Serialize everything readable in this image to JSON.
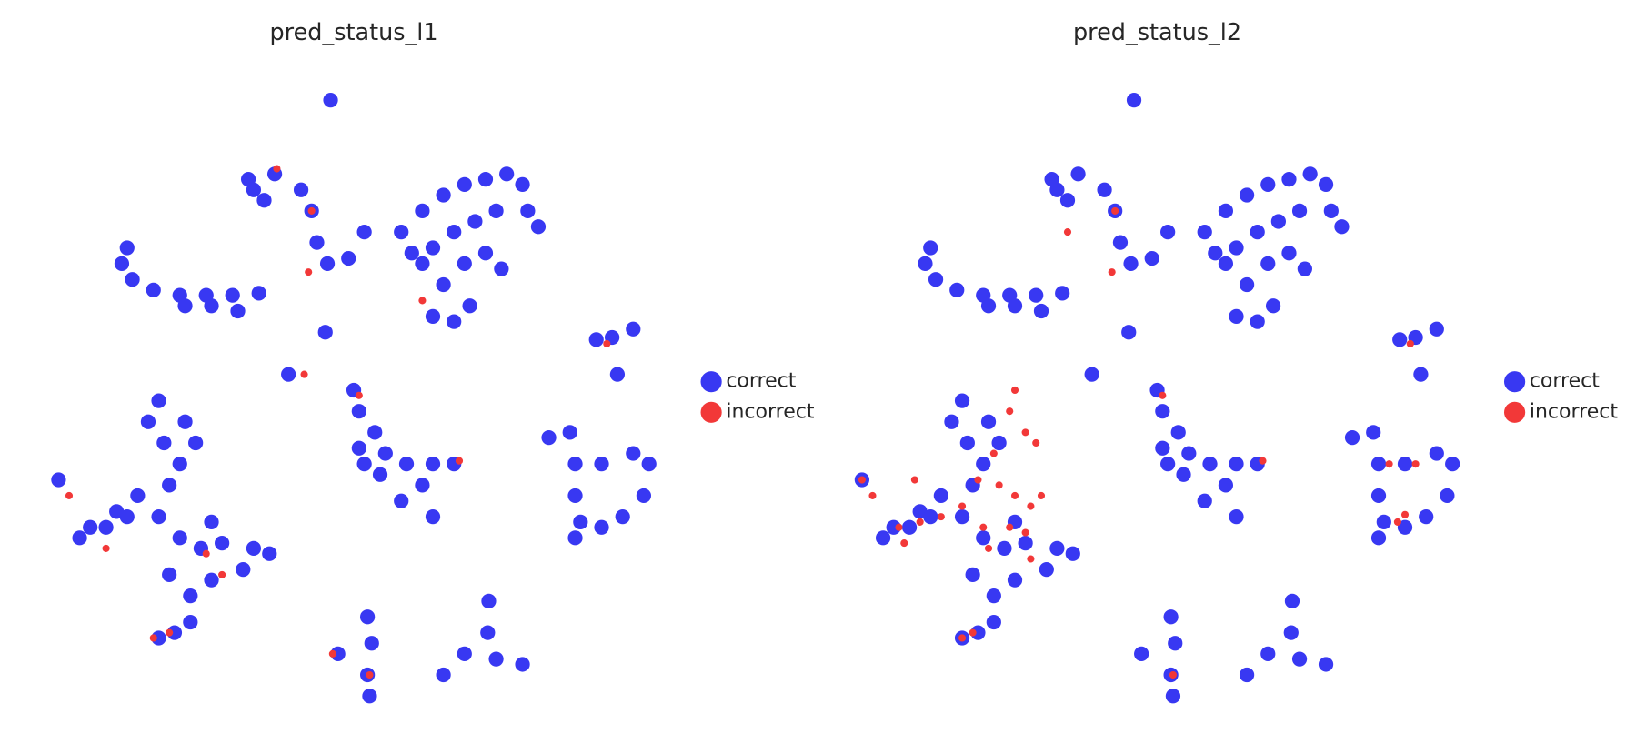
{
  "chart_data": [
    {
      "type": "scatter",
      "title": "pred_status_l1",
      "xlim": [
        0,
        600
      ],
      "ylim": [
        0,
        600
      ],
      "series": [
        {
          "name": "correct",
          "color": "#3838f2",
          "x": [
            273,
            195,
            220,
            245,
            255,
            260,
            270,
            290,
            305,
            200,
            210,
            340,
            360,
            380,
            400,
            420,
            440,
            455,
            460,
            470,
            430,
            410,
            390,
            370,
            350,
            400,
            420,
            435,
            380,
            370,
            390,
            405,
            360,
            80,
            75,
            85,
            105,
            130,
            155,
            180,
            205,
            160,
            135,
            185,
            540,
            525,
            560,
            545,
            233,
            268,
            110,
            100,
            115,
            130,
            145,
            135,
            120,
            90,
            70,
            45,
            35,
            60,
            80,
            110,
            130,
            150,
            170,
            200,
            215,
            190,
            160,
            140,
            120,
            160,
            15,
            110,
            125,
            140,
            295,
            300,
            315,
            300,
            325,
            345,
            370,
            390,
            360,
            340,
            370,
            320,
            305,
            480,
            500,
            505,
            505,
            510,
            505,
            530,
            560,
            575,
            570,
            550,
            530,
            308,
            312,
            308,
            310,
            280,
            423,
            422,
            400,
            430,
            455,
            380
          ],
          "values": [
            585,
            510,
            515,
            500,
            480,
            450,
            430,
            435,
            460,
            500,
            490,
            460,
            480,
            495,
            505,
            510,
            515,
            505,
            480,
            465,
            480,
            470,
            460,
            445,
            440,
            430,
            440,
            425,
            410,
            380,
            375,
            390,
            430,
            445,
            430,
            415,
            405,
            400,
            400,
            400,
            402,
            390,
            390,
            385,
            360,
            358,
            368,
            325,
            325,
            365,
            300,
            280,
            260,
            240,
            260,
            280,
            220,
            210,
            195,
            180,
            170,
            180,
            190,
            190,
            170,
            160,
            165,
            160,
            155,
            140,
            130,
            115,
            135,
            185,
            225,
            75,
            80,
            90,
            310,
            290,
            270,
            255,
            250,
            240,
            240,
            240,
            220,
            205,
            190,
            230,
            240,
            265,
            270,
            240,
            210,
            185,
            170,
            240,
            250,
            240,
            210,
            190,
            180,
            95,
            70,
            40,
            20,
            60,
            110,
            80,
            60,
            55,
            50,
            40
          ]
        },
        {
          "name": "incorrect",
          "color": "#f23838",
          "x": [
            222,
            255,
            252,
            300,
            395,
            535,
            105,
            120,
            155,
            170,
            25,
            60,
            310,
            275,
            248,
            360
          ],
          "values": [
            520,
            480,
            422,
            305,
            243,
            354,
            75,
            80,
            155,
            135,
            210,
            160,
            40,
            60,
            325,
            395
          ]
        }
      ]
    },
    {
      "type": "scatter",
      "title": "pred_status_l2",
      "xlim": [
        0,
        600
      ],
      "ylim": [
        0,
        600
      ],
      "series": [
        {
          "name": "correct",
          "color": "#3838f2",
          "x": [
            273,
            195,
            220,
            245,
            255,
            260,
            270,
            290,
            305,
            200,
            210,
            340,
            360,
            380,
            400,
            420,
            440,
            455,
            460,
            470,
            430,
            410,
            390,
            370,
            350,
            400,
            420,
            435,
            380,
            370,
            390,
            405,
            360,
            80,
            75,
            85,
            105,
            130,
            155,
            180,
            205,
            160,
            135,
            185,
            540,
            525,
            560,
            545,
            233,
            268,
            110,
            100,
            115,
            130,
            145,
            135,
            120,
            90,
            70,
            45,
            35,
            60,
            80,
            110,
            130,
            150,
            170,
            200,
            215,
            190,
            160,
            140,
            120,
            160,
            15,
            110,
            125,
            140,
            295,
            300,
            315,
            300,
            325,
            345,
            370,
            390,
            360,
            340,
            370,
            320,
            305,
            480,
            500,
            505,
            505,
            510,
            505,
            530,
            560,
            575,
            570,
            550,
            530,
            308,
            312,
            308,
            310,
            280,
            423,
            422,
            400,
            430,
            455,
            380
          ],
          "values": [
            585,
            510,
            515,
            500,
            480,
            450,
            430,
            435,
            460,
            500,
            490,
            460,
            480,
            495,
            505,
            510,
            515,
            505,
            480,
            465,
            480,
            470,
            460,
            445,
            440,
            430,
            440,
            425,
            410,
            380,
            375,
            390,
            430,
            445,
            430,
            415,
            405,
            400,
            400,
            400,
            402,
            390,
            390,
            385,
            360,
            358,
            368,
            325,
            325,
            365,
            300,
            280,
            260,
            240,
            260,
            280,
            220,
            210,
            195,
            180,
            170,
            180,
            190,
            190,
            170,
            160,
            165,
            160,
            155,
            140,
            130,
            115,
            135,
            185,
            225,
            75,
            80,
            90,
            310,
            290,
            270,
            255,
            250,
            240,
            240,
            240,
            220,
            205,
            190,
            230,
            240,
            265,
            270,
            240,
            210,
            185,
            170,
            240,
            250,
            240,
            210,
            190,
            180,
            95,
            70,
            40,
            20,
            60,
            110,
            80,
            60,
            55,
            50,
            40
          ]
        },
        {
          "name": "incorrect",
          "color": "#f23838",
          "x": [
            210,
            255,
            252,
            300,
            395,
            535,
            110,
            120,
            160,
            155,
            170,
            140,
            125,
            145,
            160,
            110,
            90,
            70,
            50,
            130,
            155,
            175,
            185,
            170,
            135,
            180,
            175,
            65,
            55,
            15,
            25,
            523,
            530,
            540,
            515,
            310
          ],
          "values": [
            460,
            480,
            422,
            305,
            243,
            354,
            75,
            80,
            310,
            290,
            270,
            250,
            225,
            220,
            210,
            200,
            190,
            185,
            180,
            180,
            180,
            200,
            210,
            175,
            160,
            260,
            150,
            225,
            165,
            225,
            210,
            185,
            192,
            240,
            240,
            40
          ]
        }
      ]
    }
  ]
}
